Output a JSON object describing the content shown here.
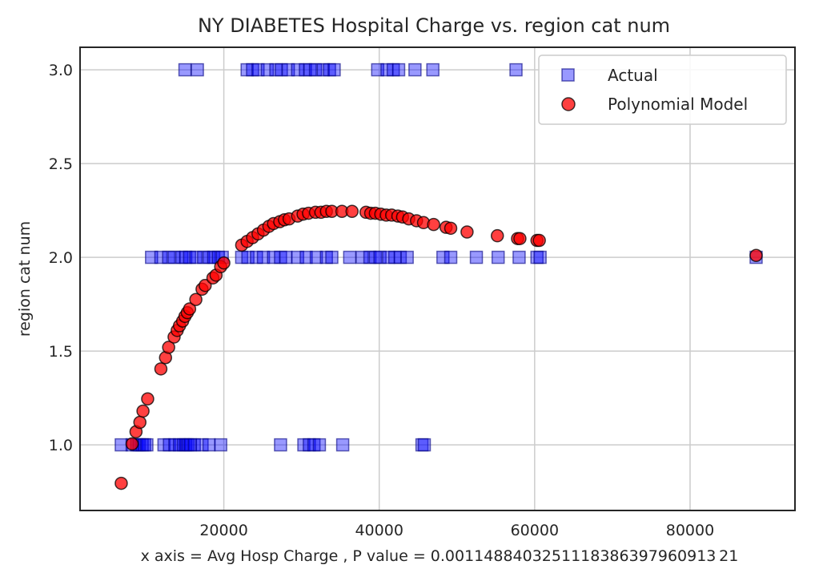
{
  "chart_data": {
    "type": "scatter",
    "title": "NY DIABETES Hospital Charge vs. region cat num",
    "xlabel": "x axis = Avg Hosp Charge , P value = 0.0011488403251118386397960913 21",
    "ylabel": "region cat num",
    "xlim": [
      1500,
      93500
    ],
    "ylim": [
      0.65,
      3.12
    ],
    "xticks": [
      20000,
      40000,
      60000,
      80000
    ],
    "yticks": [
      1.0,
      1.5,
      2.0,
      2.5,
      3.0
    ],
    "xtick_labels": [
      "20000",
      "40000",
      "60000",
      "80000"
    ],
    "ytick_labels": [
      "1.0",
      "1.5",
      "2.0",
      "2.5",
      "3.0"
    ],
    "grid": true,
    "legend": "top-right",
    "series": [
      {
        "name": "Actual",
        "marker": "square",
        "color": "#0000ff",
        "points": [
          [
            6800,
            1
          ],
          [
            8200,
            1
          ],
          [
            8800,
            1
          ],
          [
            9100,
            1
          ],
          [
            9500,
            1
          ],
          [
            9800,
            1
          ],
          [
            10100,
            1
          ],
          [
            12300,
            1
          ],
          [
            13000,
            1
          ],
          [
            13700,
            1
          ],
          [
            14300,
            1
          ],
          [
            14800,
            1
          ],
          [
            15100,
            1
          ],
          [
            15400,
            1
          ],
          [
            15700,
            1
          ],
          [
            16200,
            1
          ],
          [
            17200,
            1
          ],
          [
            18100,
            1
          ],
          [
            19600,
            1
          ],
          [
            27300,
            1
          ],
          [
            30300,
            1
          ],
          [
            31000,
            1
          ],
          [
            31600,
            1
          ],
          [
            32300,
            1
          ],
          [
            35300,
            1
          ],
          [
            45500,
            1
          ],
          [
            45800,
            1
          ],
          [
            10700,
            2
          ],
          [
            11900,
            2
          ],
          [
            12900,
            2
          ],
          [
            13600,
            2
          ],
          [
            14600,
            2
          ],
          [
            15100,
            2
          ],
          [
            15600,
            2
          ],
          [
            16400,
            2
          ],
          [
            17400,
            2
          ],
          [
            18100,
            2
          ],
          [
            18700,
            2
          ],
          [
            19300,
            2
          ],
          [
            19800,
            2
          ],
          [
            22300,
            2
          ],
          [
            23100,
            2
          ],
          [
            24200,
            2
          ],
          [
            25100,
            2
          ],
          [
            26400,
            2
          ],
          [
            27300,
            2
          ],
          [
            28000,
            2
          ],
          [
            29500,
            2
          ],
          [
            30600,
            2
          ],
          [
            31900,
            2
          ],
          [
            33200,
            2
          ],
          [
            33900,
            2
          ],
          [
            36200,
            2
          ],
          [
            37800,
            2
          ],
          [
            38800,
            2
          ],
          [
            39500,
            2
          ],
          [
            40100,
            2
          ],
          [
            41200,
            2
          ],
          [
            42000,
            2
          ],
          [
            42700,
            2
          ],
          [
            43600,
            2
          ],
          [
            48200,
            2
          ],
          [
            49200,
            2
          ],
          [
            52500,
            2
          ],
          [
            55300,
            2
          ],
          [
            58000,
            2
          ],
          [
            60300,
            2
          ],
          [
            60700,
            2
          ],
          [
            88500,
            2
          ],
          [
            15000,
            3
          ],
          [
            16600,
            3
          ],
          [
            23000,
            3
          ],
          [
            23700,
            3
          ],
          [
            24400,
            3
          ],
          [
            25600,
            3
          ],
          [
            26700,
            3
          ],
          [
            27400,
            3
          ],
          [
            28300,
            3
          ],
          [
            29500,
            3
          ],
          [
            30500,
            3
          ],
          [
            31100,
            3
          ],
          [
            31800,
            3
          ],
          [
            32800,
            3
          ],
          [
            33600,
            3
          ],
          [
            34200,
            3
          ],
          [
            39800,
            3
          ],
          [
            41000,
            3
          ],
          [
            41800,
            3
          ],
          [
            42500,
            3
          ],
          [
            44600,
            3
          ],
          [
            46900,
            3
          ],
          [
            57600,
            3
          ]
        ]
      },
      {
        "name": "Polynomial Model",
        "marker": "circle",
        "color": "#ff0000",
        "points": [
          [
            6800,
            0.795
          ],
          [
            8200,
            1.005
          ],
          [
            8700,
            1.07
          ],
          [
            9200,
            1.12
          ],
          [
            9600,
            1.18
          ],
          [
            10200,
            1.245
          ],
          [
            11900,
            1.405
          ],
          [
            12500,
            1.465
          ],
          [
            12900,
            1.52
          ],
          [
            13600,
            1.575
          ],
          [
            14000,
            1.61
          ],
          [
            14300,
            1.635
          ],
          [
            14700,
            1.66
          ],
          [
            15000,
            1.685
          ],
          [
            15300,
            1.705
          ],
          [
            15600,
            1.725
          ],
          [
            16400,
            1.775
          ],
          [
            17200,
            1.83
          ],
          [
            17600,
            1.85
          ],
          [
            18600,
            1.89
          ],
          [
            19000,
            1.905
          ],
          [
            19600,
            1.95
          ],
          [
            20000,
            1.97
          ],
          [
            22300,
            2.065
          ],
          [
            23000,
            2.085
          ],
          [
            23700,
            2.105
          ],
          [
            24400,
            2.125
          ],
          [
            25100,
            2.145
          ],
          [
            25800,
            2.165
          ],
          [
            26400,
            2.18
          ],
          [
            27200,
            2.19
          ],
          [
            27800,
            2.2
          ],
          [
            28400,
            2.205
          ],
          [
            29500,
            2.22
          ],
          [
            30200,
            2.23
          ],
          [
            30900,
            2.235
          ],
          [
            31800,
            2.24
          ],
          [
            32500,
            2.24
          ],
          [
            33200,
            2.245
          ],
          [
            33900,
            2.245
          ],
          [
            35200,
            2.245
          ],
          [
            36500,
            2.245
          ],
          [
            38300,
            2.24
          ],
          [
            38900,
            2.235
          ],
          [
            39500,
            2.235
          ],
          [
            40200,
            2.23
          ],
          [
            40900,
            2.225
          ],
          [
            41600,
            2.225
          ],
          [
            42400,
            2.22
          ],
          [
            43000,
            2.215
          ],
          [
            43800,
            2.205
          ],
          [
            44800,
            2.195
          ],
          [
            45700,
            2.185
          ],
          [
            47000,
            2.175
          ],
          [
            48600,
            2.16
          ],
          [
            49200,
            2.155
          ],
          [
            51300,
            2.135
          ],
          [
            55200,
            2.115
          ],
          [
            57800,
            2.1
          ],
          [
            58100,
            2.1
          ],
          [
            60300,
            2.09
          ],
          [
            60600,
            2.09
          ],
          [
            88500,
            2.01
          ]
        ]
      }
    ]
  }
}
